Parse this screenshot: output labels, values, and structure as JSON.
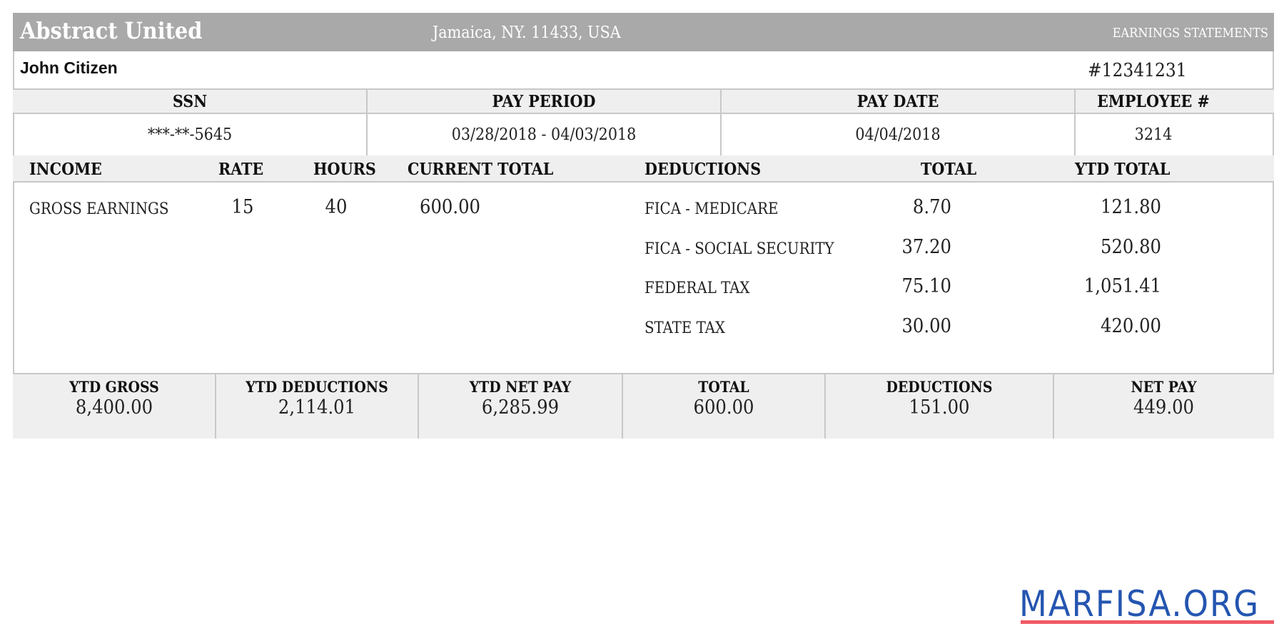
{
  "header": {
    "company": "Abstract United",
    "address": "Jamaica, NY. 11433, USA",
    "doc_type": "EARNINGS STATEMENTS"
  },
  "employee": {
    "name": "John Citizen",
    "statement_number": "#12341231"
  },
  "info": {
    "headers": [
      "SSN",
      "PAY PERIOD",
      "PAY DATE",
      "EMPLOYEE #"
    ],
    "values": [
      "***-**-5645",
      "03/28/2018 - 04/03/2018",
      "04/04/2018",
      "3214"
    ]
  },
  "income": {
    "headers": {
      "income": "INCOME",
      "rate": "RATE",
      "hours": "HOURS",
      "current_total": "CURRENT TOTAL",
      "deductions": "DEDUCTIONS",
      "total": "TOTAL",
      "ytd_total": "YTD TOTAL"
    },
    "rows": [
      {
        "label": "GROSS EARNINGS",
        "rate": "15",
        "hours": "40",
        "current_total": "600.00"
      }
    ],
    "deductions": [
      {
        "label": "FICA - MEDICARE",
        "total": "8.70",
        "ytd": "121.80"
      },
      {
        "label": "FICA - SOCIAL SECURITY",
        "total": "37.20",
        "ytd": "520.80"
      },
      {
        "label": "FEDERAL TAX",
        "total": "75.10",
        "ytd": "1,051.41"
      },
      {
        "label": "STATE TAX",
        "total": "30.00",
        "ytd": "420.00"
      }
    ]
  },
  "summary": [
    {
      "label": "YTD GROSS",
      "value": "8,400.00"
    },
    {
      "label": "YTD DEDUCTIONS",
      "value": "2,114.01"
    },
    {
      "label": "YTD NET PAY",
      "value": "6,285.99"
    },
    {
      "label": "TOTAL",
      "value": "600.00"
    },
    {
      "label": "DEDUCTIONS",
      "value": "151.00"
    },
    {
      "label": "NET PAY",
      "value": "449.00"
    }
  ],
  "watermark": {
    "text": "MARFISA.ORG",
    "text_color": "#2455b0",
    "underline_color": "#f05a64"
  }
}
